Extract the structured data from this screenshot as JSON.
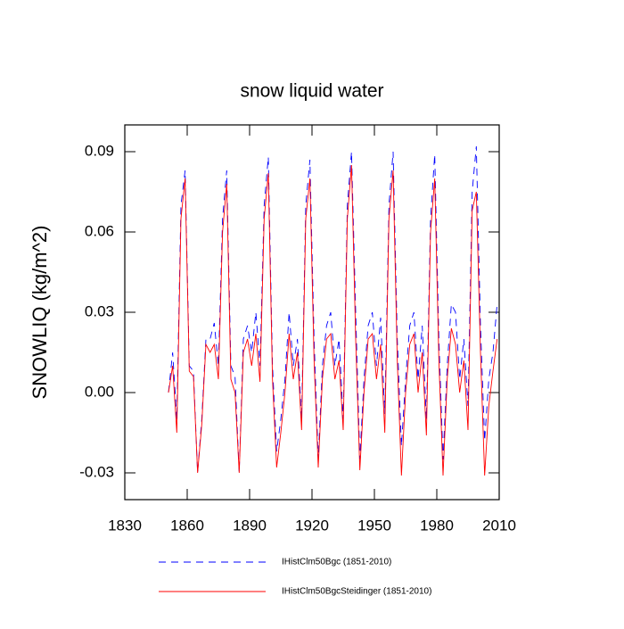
{
  "chart_data": {
    "type": "line",
    "title": "snow liquid water",
    "ylabel": "SNOWLIQ  (kg/m^2)",
    "x": [
      1851,
      1853,
      1855,
      1857,
      1859,
      1861,
      1863,
      1865,
      1867,
      1869,
      1871,
      1873,
      1875,
      1877,
      1879,
      1881,
      1883,
      1885,
      1887,
      1889,
      1891,
      1893,
      1895,
      1897,
      1899,
      1901,
      1903,
      1905,
      1907,
      1909,
      1911,
      1913,
      1915,
      1917,
      1919,
      1921,
      1923,
      1925,
      1927,
      1929,
      1931,
      1933,
      1935,
      1937,
      1939,
      1941,
      1943,
      1945,
      1947,
      1949,
      1951,
      1953,
      1955,
      1957,
      1959,
      1961,
      1963,
      1965,
      1967,
      1969,
      1971,
      1973,
      1975,
      1977,
      1979,
      1981,
      1983,
      1985,
      1987,
      1989,
      1991,
      1993,
      1995,
      1997,
      1999,
      2001,
      2003,
      2005,
      2007,
      2009
    ],
    "series": [
      {
        "name": "IHistClm50Bgc (1851-2010)",
        "color": "#0000ff",
        "dash": "8,6",
        "values": [
          0.0,
          0.015,
          -0.01,
          0.07,
          0.083,
          0.01,
          0.008,
          -0.03,
          -0.01,
          0.02,
          0.02,
          0.026,
          0.01,
          0.065,
          0.083,
          0.01,
          0.006,
          -0.03,
          0.02,
          0.025,
          0.015,
          0.03,
          0.01,
          0.07,
          0.088,
          0.01,
          -0.022,
          -0.01,
          0.005,
          0.03,
          0.01,
          0.02,
          -0.01,
          0.07,
          0.087,
          0.02,
          -0.025,
          0.01,
          0.025,
          0.03,
          0.01,
          0.02,
          -0.01,
          0.07,
          0.09,
          0.03,
          -0.025,
          0.005,
          0.025,
          0.03,
          0.01,
          0.028,
          -0.008,
          0.07,
          0.09,
          0.02,
          -0.02,
          0.005,
          0.025,
          0.03,
          0.005,
          0.025,
          -0.01,
          0.065,
          0.089,
          0.02,
          -0.025,
          0.01,
          0.033,
          0.03,
          0.005,
          0.02,
          -0.005,
          0.075,
          0.092,
          0.025,
          -0.018,
          0.005,
          0.015,
          0.033
        ]
      },
      {
        "name": "IHistClm50BgcSteidinger (1851-2010)",
        "color": "#ff0000",
        "dash": "none",
        "values": [
          0.0,
          0.01,
          -0.015,
          0.065,
          0.08,
          0.008,
          0.006,
          -0.03,
          -0.012,
          0.018,
          0.015,
          0.018,
          0.005,
          0.06,
          0.078,
          0.005,
          0.0,
          -0.03,
          0.015,
          0.02,
          0.01,
          0.022,
          0.004,
          0.065,
          0.082,
          0.005,
          -0.028,
          -0.015,
          0.0,
          0.022,
          0.005,
          0.015,
          -0.014,
          0.065,
          0.08,
          0.012,
          -0.028,
          0.005,
          0.02,
          0.022,
          0.005,
          0.012,
          -0.014,
          0.065,
          0.085,
          0.02,
          -0.029,
          0.0,
          0.02,
          0.022,
          0.005,
          0.018,
          -0.015,
          0.065,
          0.083,
          0.012,
          -0.031,
          0.0,
          0.018,
          0.022,
          0.0,
          0.015,
          -0.016,
          0.06,
          0.08,
          0.012,
          -0.031,
          0.005,
          0.024,
          0.018,
          0.0,
          0.012,
          -0.014,
          0.068,
          0.075,
          0.015,
          -0.031,
          -0.005,
          0.008,
          0.02
        ]
      }
    ],
    "xlim": [
      1830,
      2010
    ],
    "ylim": [
      -0.04,
      0.1
    ],
    "xticks": [
      1830,
      1860,
      1890,
      1920,
      1950,
      1980,
      2010
    ],
    "yticks": [
      -0.03,
      {
        "value": 0,
        "label": "0.00"
      },
      0.03,
      0.06,
      0.09
    ],
    "legend": "bottom"
  }
}
